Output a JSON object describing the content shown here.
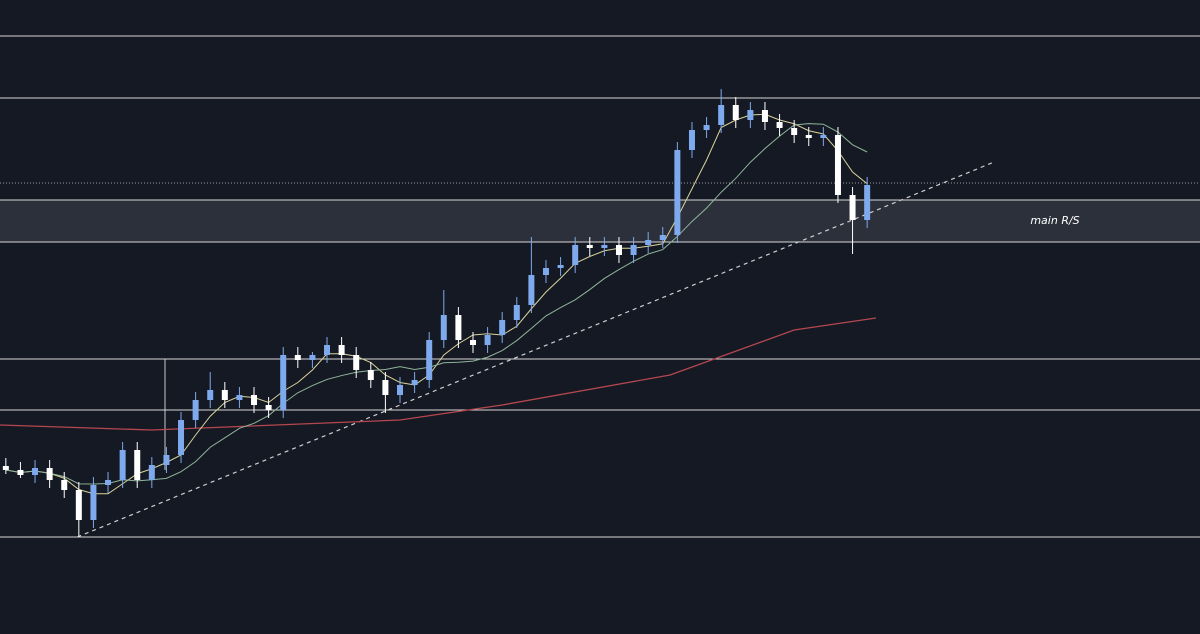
{
  "chart_data": {
    "type": "candlestick",
    "zone_label": "main R/S",
    "xlim": [
      -0.4,
      81.8
    ],
    "ylim": [
      0,
      634
    ],
    "up_color": "#7ea9ec",
    "down_color": "#ffffff",
    "open": [
      168,
      164,
      159,
      166,
      154,
      144,
      114,
      149,
      154,
      184,
      154,
      169,
      179,
      214,
      234,
      244,
      234,
      239,
      229,
      224,
      279,
      274,
      279,
      289,
      279,
      264,
      254,
      239,
      249,
      254,
      294,
      319,
      294,
      289,
      299,
      314,
      329,
      359,
      366,
      369,
      389,
      386,
      389,
      379,
      389,
      394,
      399,
      484,
      504,
      509,
      529,
      514,
      524,
      512,
      506,
      499,
      496,
      499,
      439,
      414
    ],
    "high": [
      176,
      172,
      174,
      174,
      162,
      152,
      157,
      162,
      192,
      192,
      177,
      187,
      222,
      242,
      262,
      252,
      247,
      247,
      237,
      287,
      287,
      282,
      297,
      297,
      287,
      272,
      262,
      257,
      262,
      302,
      344,
      327,
      302,
      307,
      322,
      337,
      397,
      374,
      377,
      397,
      397,
      397,
      397,
      397,
      402,
      407,
      492,
      512,
      517,
      545,
      537,
      532,
      532,
      520,
      514,
      507,
      507,
      507,
      447,
      457
    ],
    "low": [
      160,
      156,
      151,
      146,
      136,
      97,
      106,
      141,
      146,
      146,
      146,
      161,
      171,
      206,
      226,
      226,
      226,
      221,
      216,
      216,
      266,
      266,
      271,
      271,
      256,
      246,
      221,
      231,
      241,
      246,
      286,
      286,
      281,
      281,
      291,
      306,
      321,
      351,
      358,
      361,
      378,
      378,
      371,
      371,
      381,
      386,
      391,
      476,
      496,
      501,
      506,
      506,
      504,
      498,
      491,
      488,
      488,
      431,
      380,
      406
    ],
    "close": [
      164,
      159,
      166,
      154,
      144,
      114,
      149,
      154,
      184,
      154,
      169,
      179,
      214,
      234,
      244,
      234,
      239,
      229,
      224,
      279,
      274,
      279,
      289,
      279,
      264,
      254,
      239,
      249,
      254,
      294,
      319,
      294,
      289,
      299,
      314,
      329,
      359,
      366,
      369,
      389,
      386,
      389,
      379,
      389,
      394,
      399,
      484,
      504,
      509,
      529,
      514,
      524,
      512,
      506,
      499,
      496,
      499,
      439,
      414,
      449
    ],
    "levels": [
      598,
      536,
      434,
      392,
      275,
      224,
      97
    ],
    "dotted_level": 451,
    "zone": [
      392,
      434
    ],
    "trendline": {
      "x": [
        4.9,
        67.7
      ],
      "values": [
        97,
        472
      ]
    },
    "long_ma": {
      "color": "#b5474f",
      "x": [
        -0.4,
        10,
        27,
        34,
        45.5,
        54,
        59.6
      ],
      "values": [
        209,
        204,
        214,
        229,
        259,
        304,
        316
      ]
    }
  }
}
